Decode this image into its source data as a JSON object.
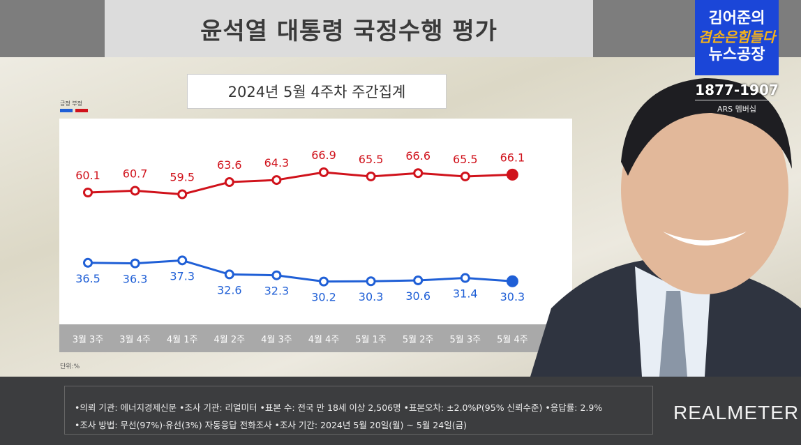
{
  "header": {
    "title": "윤석열 대통령 국정수행 평가",
    "subtitle": "2024년 5월 4주차 주간집계",
    "unit": "단위:%"
  },
  "logo": {
    "line1": "김어준의",
    "line2": "겸손은힘들다",
    "line3": "뉴스공장",
    "phone": "1877-1907",
    "ars": "ARS 멤버십"
  },
  "chart_data": {
    "type": "line",
    "title": "2024년 5월 4주차 주간집계",
    "categories": [
      "3월 3주",
      "3월 4주",
      "4월 1주",
      "4월 2주",
      "4월 3주",
      "4월 4주",
      "5월 1주",
      "5월 2주",
      "5월 3주",
      "5월 4주"
    ],
    "series": [
      {
        "name": "부정",
        "color": "#d0121b",
        "values": [
          60.1,
          60.7,
          59.5,
          63.6,
          64.3,
          66.9,
          65.5,
          66.6,
          65.5,
          66.1
        ]
      },
      {
        "name": "긍정",
        "color": "#1f5fd6",
        "values": [
          36.5,
          36.3,
          37.3,
          32.6,
          32.3,
          30.2,
          30.3,
          30.6,
          31.4,
          30.3
        ]
      }
    ],
    "legend": "top-left",
    "ylabel": "단위:%",
    "grid": false
  },
  "footer": {
    "line1": "•의뢰 기관: 에너지경제신문 •조사 기관: 리얼미터 •표본 수: 전국 만 18세 이상 2,506명 •표본오차: ±2.0%P(95% 신뢰수준) •응답률: 2.9%",
    "line2": "•조사 방법: 무선(97%)·유선(3%) 자동응답 전화조사 •조사 기간: 2024년 5월 20일(월) ~ 5월 24일(금)",
    "brand": "REALMETER"
  }
}
